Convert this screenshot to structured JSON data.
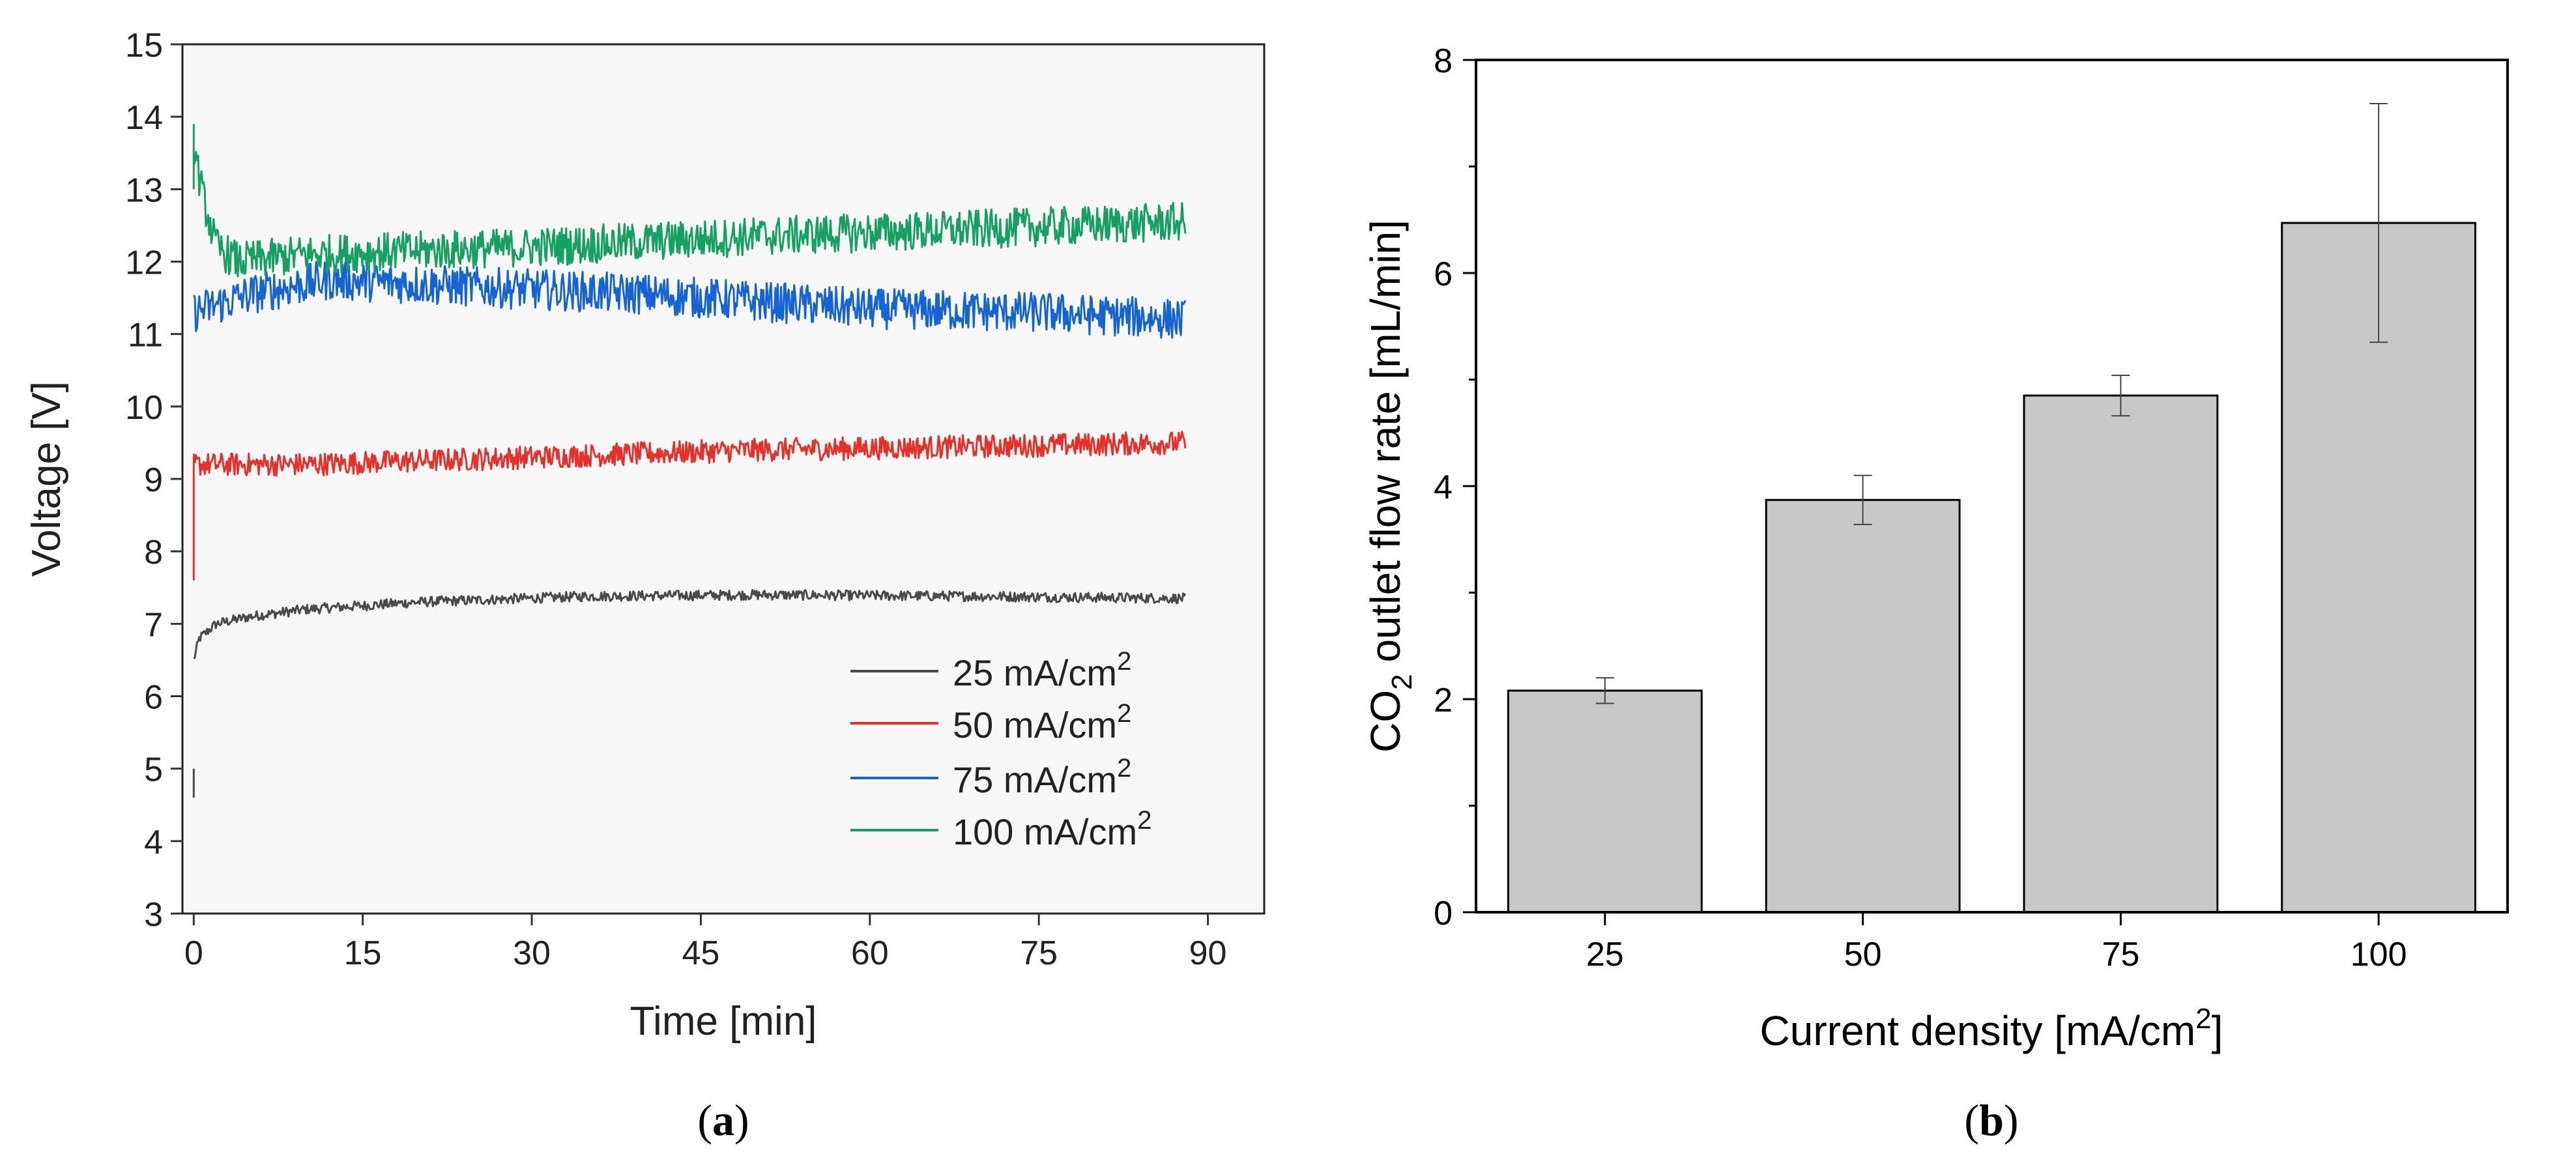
{
  "chart_data": [
    {
      "id": "a",
      "type": "line",
      "panel_label": "a",
      "xlabel": "Time [min]",
      "ylabel": "Voltage [V]",
      "xlim": [
        -1,
        95
      ],
      "ylim": [
        3,
        15
      ],
      "xticks": [
        0,
        15,
        30,
        45,
        60,
        75,
        90
      ],
      "yticks": [
        3,
        4,
        5,
        6,
        7,
        8,
        9,
        10,
        11,
        12,
        13,
        14,
        15
      ],
      "grid": false,
      "legend": "bottom-right",
      "series": [
        {
          "name": "25 mA/cm",
          "unit_power": "2",
          "color": "#4a4a4a",
          "noise": 0.07,
          "start_spike": [
            4.6,
            5.0
          ],
          "profile": [
            [
              0.0,
              6.5
            ],
            [
              0.5,
              6.8
            ],
            [
              2,
              7.0
            ],
            [
              5,
              7.1
            ],
            [
              10,
              7.2
            ],
            [
              20,
              7.3
            ],
            [
              35,
              7.38
            ],
            [
              50,
              7.4
            ],
            [
              70,
              7.38
            ],
            [
              88,
              7.35
            ]
          ]
        },
        {
          "name": "50 mA/cm",
          "unit_power": "2",
          "color": "#e8302a",
          "noise": 0.16,
          "start_spike": [
            7.6,
            9.3
          ],
          "profile": [
            [
              0.0,
              9.2
            ],
            [
              10,
              9.2
            ],
            [
              30,
              9.3
            ],
            [
              50,
              9.4
            ],
            [
              70,
              9.45
            ],
            [
              88,
              9.5
            ]
          ]
        },
        {
          "name": "75 mA/cm",
          "unit_power": "2",
          "color": "#1664d4",
          "noise": 0.28,
          "start_spike": null,
          "profile": [
            [
              0.0,
              11.3
            ],
            [
              5,
              11.55
            ],
            [
              12,
              11.75
            ],
            [
              25,
              11.65
            ],
            [
              40,
              11.55
            ],
            [
              60,
              11.35
            ],
            [
              75,
              11.3
            ],
            [
              88,
              11.2
            ]
          ]
        },
        {
          "name": "100 mA/cm",
          "unit_power": "2",
          "color": "#16a062",
          "noise": 0.27,
          "start_spike": [
            13.0,
            13.9
          ],
          "profile": [
            [
              0.0,
              13.6
            ],
            [
              0.8,
              12.9
            ],
            [
              2,
              12.2
            ],
            [
              4,
              12.0
            ],
            [
              10,
              12.1
            ],
            [
              30,
              12.2
            ],
            [
              50,
              12.35
            ],
            [
              70,
              12.45
            ],
            [
              88,
              12.55
            ]
          ]
        }
      ]
    },
    {
      "id": "b",
      "type": "bar",
      "panel_label": "b",
      "xlabel": "Current density [mA/cm",
      "xlabel_power": "2",
      "xlabel_end": "]",
      "ylabel_pre": "CO",
      "ylabel_sub": "2",
      "ylabel_post": " outlet flow rate [mL/min]",
      "categories": [
        "25",
        "50",
        "75",
        "100"
      ],
      "values": [
        2.08,
        3.87,
        4.85,
        6.47
      ],
      "errors": [
        0.12,
        0.23,
        0.19,
        1.12
      ],
      "ylim": [
        0,
        8
      ],
      "yticks": [
        0,
        2,
        4,
        6,
        8
      ],
      "bar_color": "#c8c8c8",
      "grid": false
    }
  ]
}
